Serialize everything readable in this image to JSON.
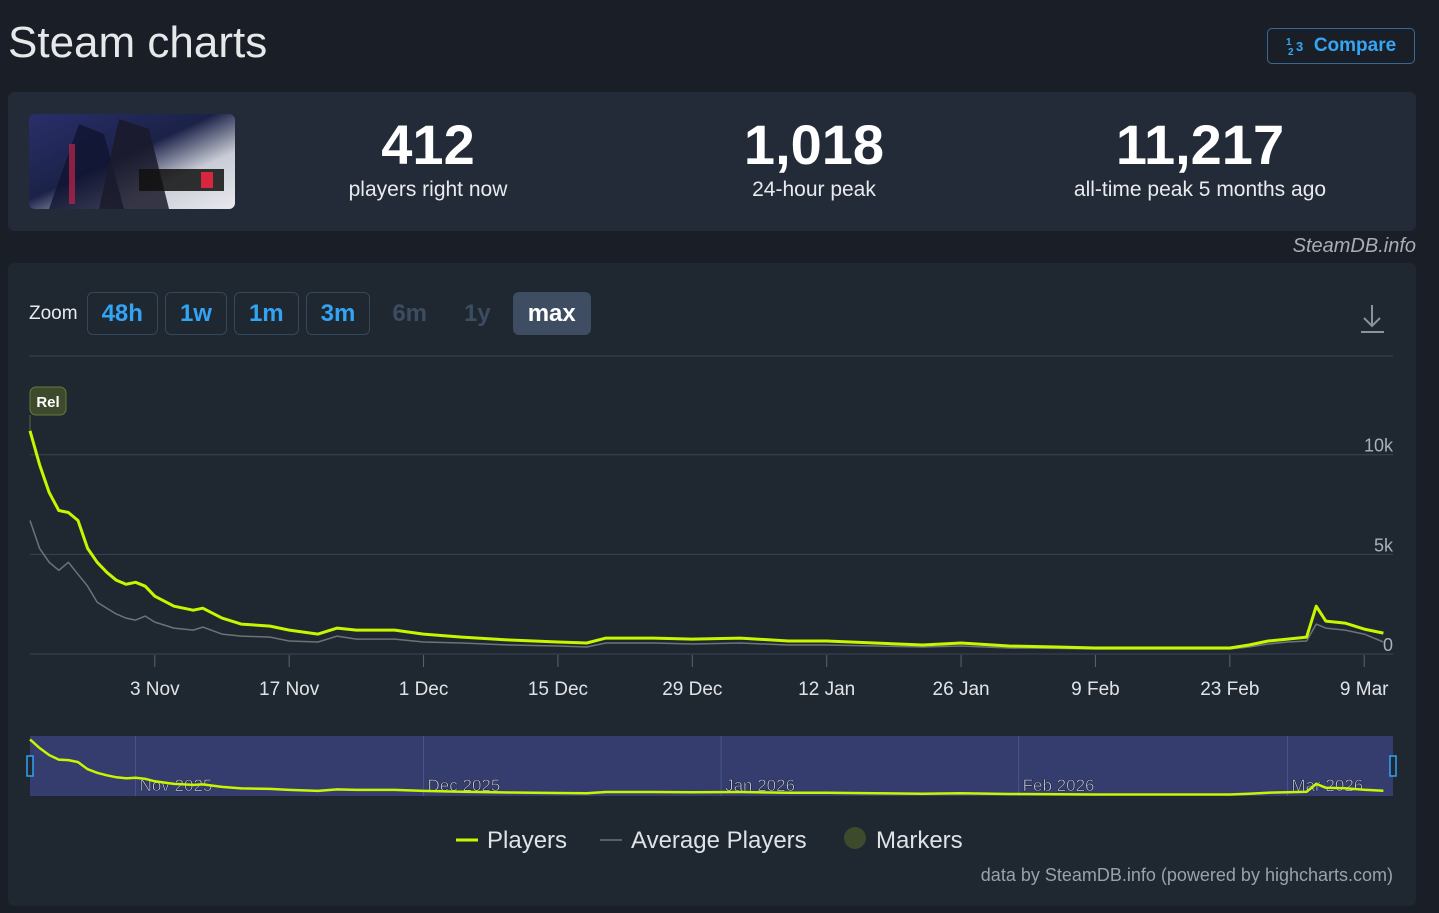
{
  "header": {
    "title": "Steam charts",
    "compare": "Compare"
  },
  "stats": [
    {
      "value": "412",
      "label": "players right now"
    },
    {
      "value": "1,018",
      "label": "24-hour peak"
    },
    {
      "value": "11,217",
      "label": "all-time peak 5 months ago"
    }
  ],
  "source": "SteamDB.info",
  "zoom": {
    "label": "Zoom",
    "buttons": [
      {
        "label": "48h",
        "state": "enabled"
      },
      {
        "label": "1w",
        "state": "enabled"
      },
      {
        "label": "1m",
        "state": "enabled"
      },
      {
        "label": "3m",
        "state": "enabled"
      },
      {
        "label": "6m",
        "state": "disabled"
      },
      {
        "label": "1y",
        "state": "disabled"
      },
      {
        "label": "max",
        "state": "active"
      }
    ]
  },
  "chart_data": {
    "type": "line",
    "x": [
      "2025-10-21",
      "2025-10-22",
      "2025-10-23",
      "2025-10-24",
      "2025-10-25",
      "2025-10-26",
      "2025-10-27",
      "2025-10-28",
      "2025-10-29",
      "2025-10-30",
      "2025-10-31",
      "2025-11-01",
      "2025-11-02",
      "2025-11-03",
      "2025-11-05",
      "2025-11-07",
      "2025-11-08",
      "2025-11-10",
      "2025-11-12",
      "2025-11-15",
      "2025-11-17",
      "2025-11-20",
      "2025-11-22",
      "2025-11-24",
      "2025-11-28",
      "2025-12-01",
      "2025-12-05",
      "2025-12-10",
      "2025-12-15",
      "2025-12-18",
      "2025-12-20",
      "2025-12-25",
      "2025-12-29",
      "2026-01-03",
      "2026-01-08",
      "2026-01-12",
      "2026-01-17",
      "2026-01-22",
      "2026-01-26",
      "2026-01-31",
      "2026-02-05",
      "2026-02-09",
      "2026-02-14",
      "2026-02-19",
      "2026-02-23",
      "2026-02-25",
      "2026-02-27",
      "2026-03-01",
      "2026-03-03",
      "2026-03-04",
      "2026-03-05",
      "2026-03-07",
      "2026-03-09",
      "2026-03-11"
    ],
    "series": [
      {
        "name": "Players",
        "color": "#c8f500",
        "values": [
          11200,
          9500,
          8100,
          7200,
          7100,
          6700,
          5300,
          4600,
          4100,
          3700,
          3500,
          3600,
          3400,
          2900,
          2400,
          2200,
          2300,
          1800,
          1500,
          1400,
          1200,
          1000,
          1300,
          1200,
          1200,
          1000,
          850,
          700,
          600,
          550,
          800,
          800,
          750,
          800,
          650,
          650,
          550,
          450,
          550,
          400,
          350,
          300,
          300,
          300,
          300,
          450,
          650,
          750,
          850,
          2400,
          1650,
          1550,
          1250,
          1050
        ]
      },
      {
        "name": "Average Players",
        "color": "#6e7378",
        "values": [
          6700,
          5300,
          4600,
          4200,
          4600,
          4000,
          3400,
          2600,
          2300,
          2000,
          1800,
          1700,
          1900,
          1600,
          1300,
          1200,
          1350,
          1000,
          900,
          850,
          650,
          600,
          900,
          750,
          750,
          600,
          550,
          450,
          400,
          350,
          550,
          550,
          500,
          550,
          450,
          450,
          400,
          350,
          400,
          300,
          280,
          250,
          250,
          250,
          250,
          350,
          500,
          600,
          650,
          1500,
          1300,
          1200,
          1000,
          600
        ]
      }
    ],
    "markers": {
      "name": "Markers",
      "color": "#3d4a2b",
      "points": [
        {
          "x": "2025-10-21",
          "label": "Rel"
        }
      ]
    },
    "xlim": [
      "2025-10-21",
      "2026-03-12"
    ],
    "xticks": [
      {
        "value": "2025-11-03",
        "label": "3 Nov"
      },
      {
        "value": "2025-11-17",
        "label": "17 Nov"
      },
      {
        "value": "2025-12-01",
        "label": "1 Dec"
      },
      {
        "value": "2025-12-15",
        "label": "15 Dec"
      },
      {
        "value": "2025-12-29",
        "label": "29 Dec"
      },
      {
        "value": "2026-01-12",
        "label": "12 Jan"
      },
      {
        "value": "2026-01-26",
        "label": "26 Jan"
      },
      {
        "value": "2026-02-09",
        "label": "9 Feb"
      },
      {
        "value": "2026-02-23",
        "label": "23 Feb"
      },
      {
        "value": "2026-03-09",
        "label": "9 Mar"
      }
    ],
    "ylim": [
      0,
      14000
    ],
    "yticks": [
      0,
      {
        "value": 5000,
        "label": "5k"
      },
      {
        "value": 10000,
        "label": "10k"
      }
    ],
    "grid": true,
    "navigator_ticks": [
      {
        "value": "2025-11-01",
        "label": "Nov 2025"
      },
      {
        "value": "2025-12-01",
        "label": "Dec 2025"
      },
      {
        "value": "2026-01-01",
        "label": "Jan 2026"
      },
      {
        "value": "2026-02-01",
        "label": "Feb 2026"
      },
      {
        "value": "2026-03-01",
        "label": "Mar 2026"
      }
    ],
    "legend": "bottom",
    "credits": "data by SteamDB.info (powered by highcharts.com)"
  }
}
